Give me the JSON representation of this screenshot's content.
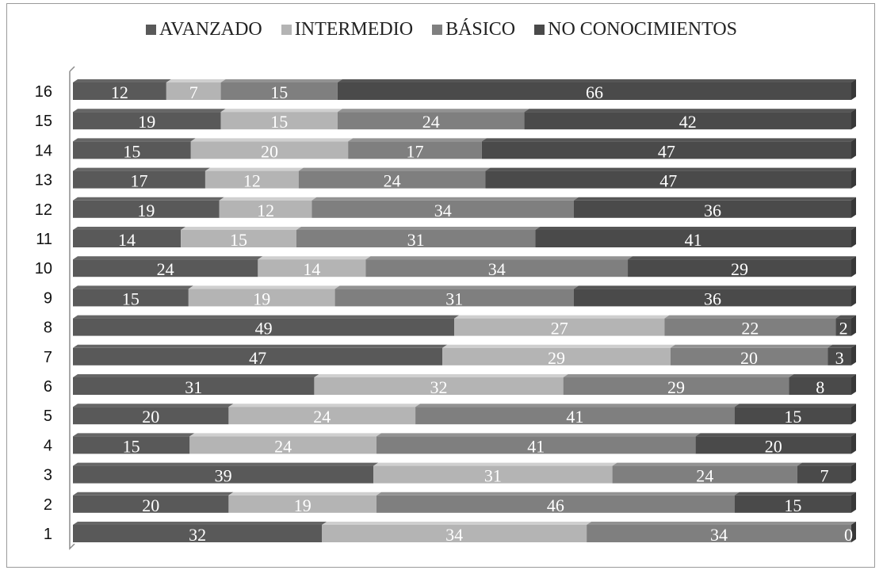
{
  "chart_data": {
    "type": "bar",
    "orientation": "horizontal",
    "stacked": "percent",
    "categories": [
      "1",
      "2",
      "3",
      "4",
      "5",
      "6",
      "7",
      "8",
      "9",
      "10",
      "11",
      "12",
      "13",
      "14",
      "15",
      "16"
    ],
    "series": [
      {
        "name": "AVANZADO",
        "color": "#595959",
        "values": [
          32,
          20,
          39,
          15,
          20,
          31,
          47,
          49,
          15,
          24,
          14,
          19,
          17,
          15,
          19,
          12
        ]
      },
      {
        "name": "INTERMEDIO",
        "color": "#b4b4b4",
        "values": [
          34,
          19,
          31,
          24,
          24,
          32,
          29,
          27,
          19,
          14,
          15,
          12,
          12,
          20,
          15,
          7
        ]
      },
      {
        "name": "BÁSICO",
        "color": "#7f7f7f",
        "values": [
          34,
          46,
          24,
          41,
          41,
          29,
          20,
          22,
          31,
          34,
          31,
          34,
          24,
          17,
          24,
          15
        ]
      },
      {
        "name": "NO CONOCIMIENTOS",
        "color": "#4a4a4a",
        "values": [
          0,
          15,
          7,
          20,
          15,
          8,
          3,
          2,
          36,
          29,
          41,
          36,
          47,
          47,
          42,
          66
        ]
      }
    ],
    "title": "",
    "xlabel": "",
    "ylabel": "",
    "legend_position": "top",
    "grid": false
  }
}
